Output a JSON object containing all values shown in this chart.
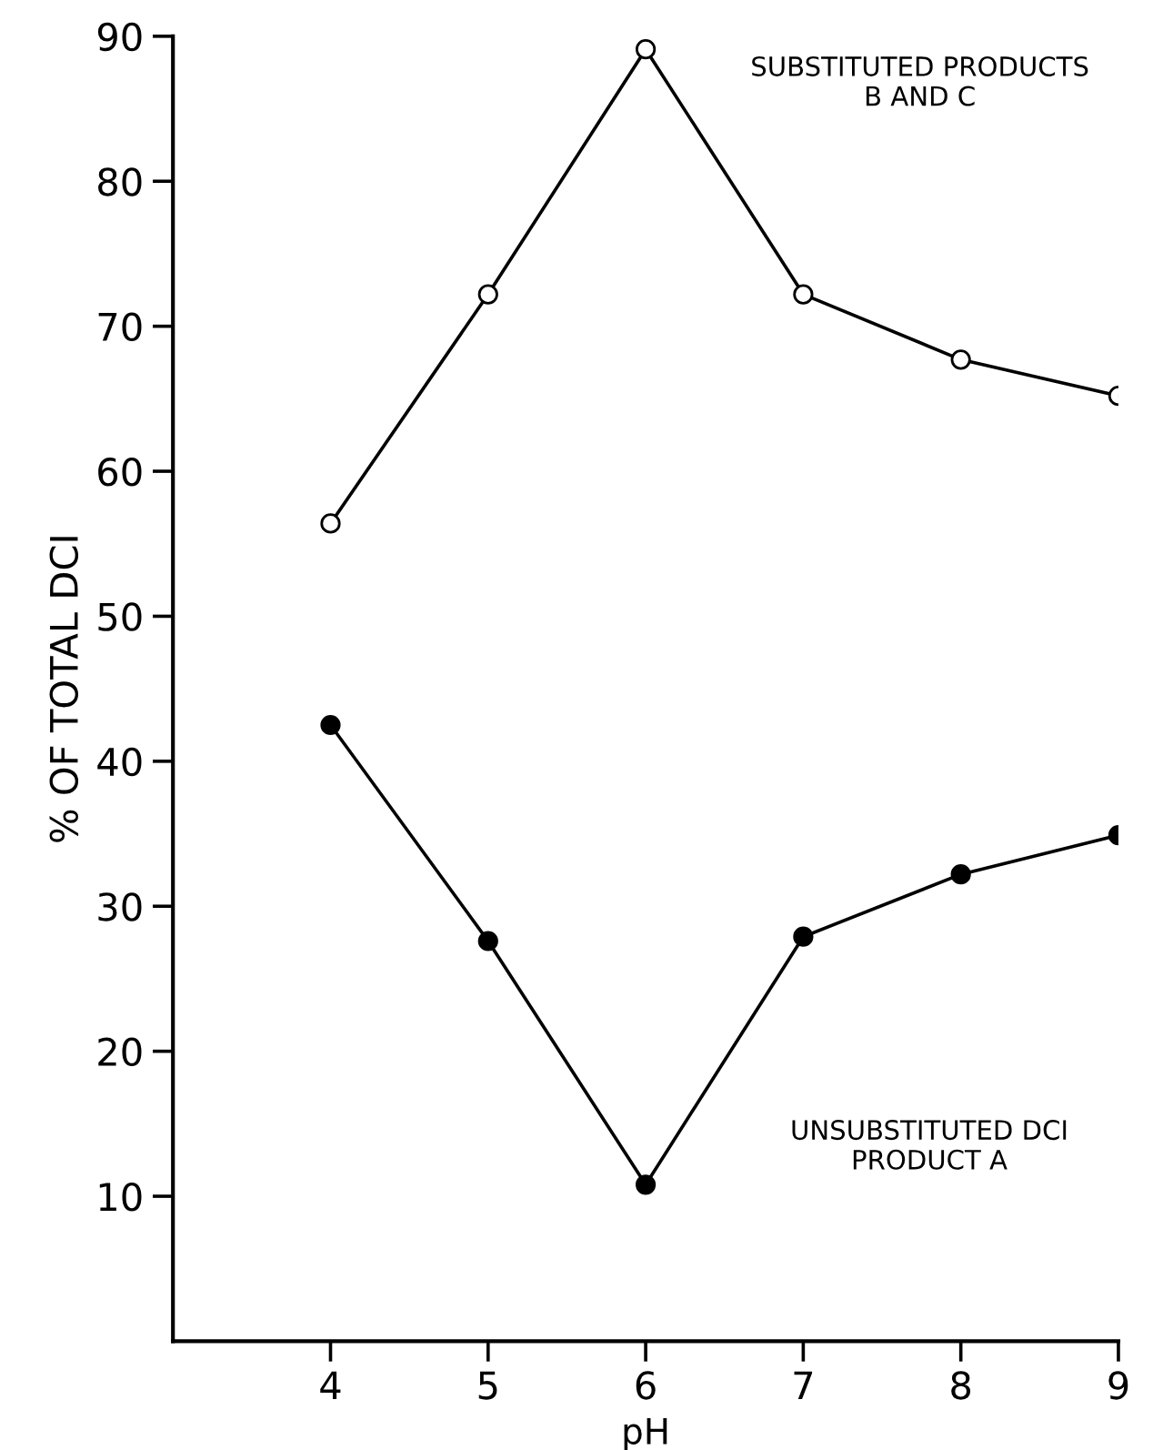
{
  "chart_data": {
    "type": "line",
    "xlabel": "pH",
    "ylabel": "% OF TOTAL DCI",
    "x": [
      4,
      5,
      6,
      7,
      8,
      9
    ],
    "series": [
      {
        "color": "#000000",
        "values": [
          56.4,
          72.2,
          89.1,
          72.2,
          67.7,
          65.2
        ]
      },
      {
        "color": "#000000",
        "values": [
          42.5,
          27.6,
          10.8,
          27.9,
          32.2,
          34.9
        ]
      }
    ],
    "annotations": [
      "SUBSTITUTED PRODUCTS\nB AND C",
      "UNSUBSTITUTED DCI\nPRODUCT A"
    ],
    "marker": "circle",
    "xlim": [
      3,
      9
    ],
    "ylim": [
      0,
      90
    ],
    "xticks": [
      4,
      5,
      6,
      7,
      8,
      9
    ],
    "yticks": [
      10,
      20,
      30,
      40,
      50,
      60,
      70,
      80,
      90
    ],
    "grid": false,
    "legend": false,
    "line_style": "solid"
  }
}
